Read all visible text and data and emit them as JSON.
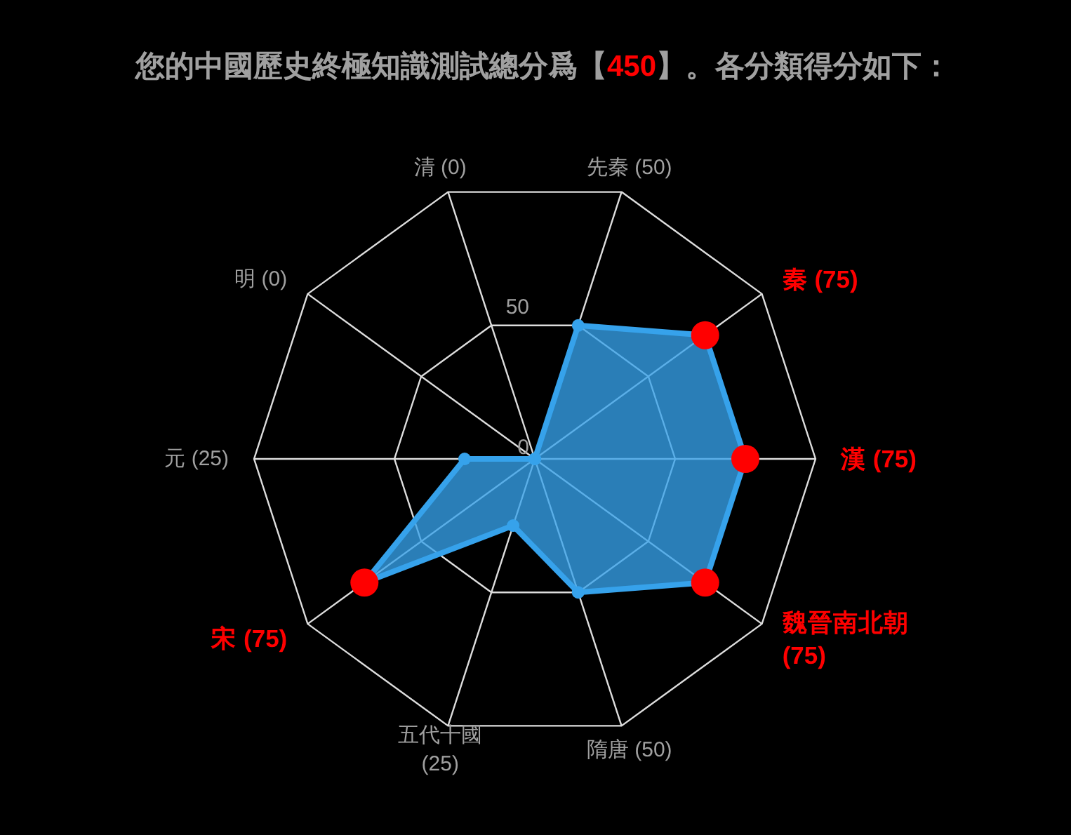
{
  "chart_data": {
    "type": "radar",
    "title": "您的中國歷史終極知識測試總分爲【450】。各分類得分如下：",
    "categories": [
      "先秦 (50)",
      "秦 (75)",
      "漢 (75)",
      "魏晉南北朝 (75)",
      "隋唐 (50)",
      "五代十國 (25)",
      "宋 (75)",
      "元 (25)",
      "明 (0)",
      "清 (0)"
    ],
    "series": [
      {
        "color": "#36a2eb",
        "values": [
          50,
          75,
          75,
          75,
          50,
          25,
          75,
          25,
          0,
          0
        ],
        "colors": [
          "#36a2eb",
          "#ff0000",
          "#ff0000",
          "#ff0000",
          "#36a2eb",
          "#36a2eb",
          "#ff0000",
          "#36a2eb",
          "#36a2eb",
          "#36a2eb"
        ]
      }
    ],
    "ylim": [
      0,
      100
    ],
    "yticks": [
      0,
      50
    ],
    "grid": true,
    "marker": "circle"
  }
}
